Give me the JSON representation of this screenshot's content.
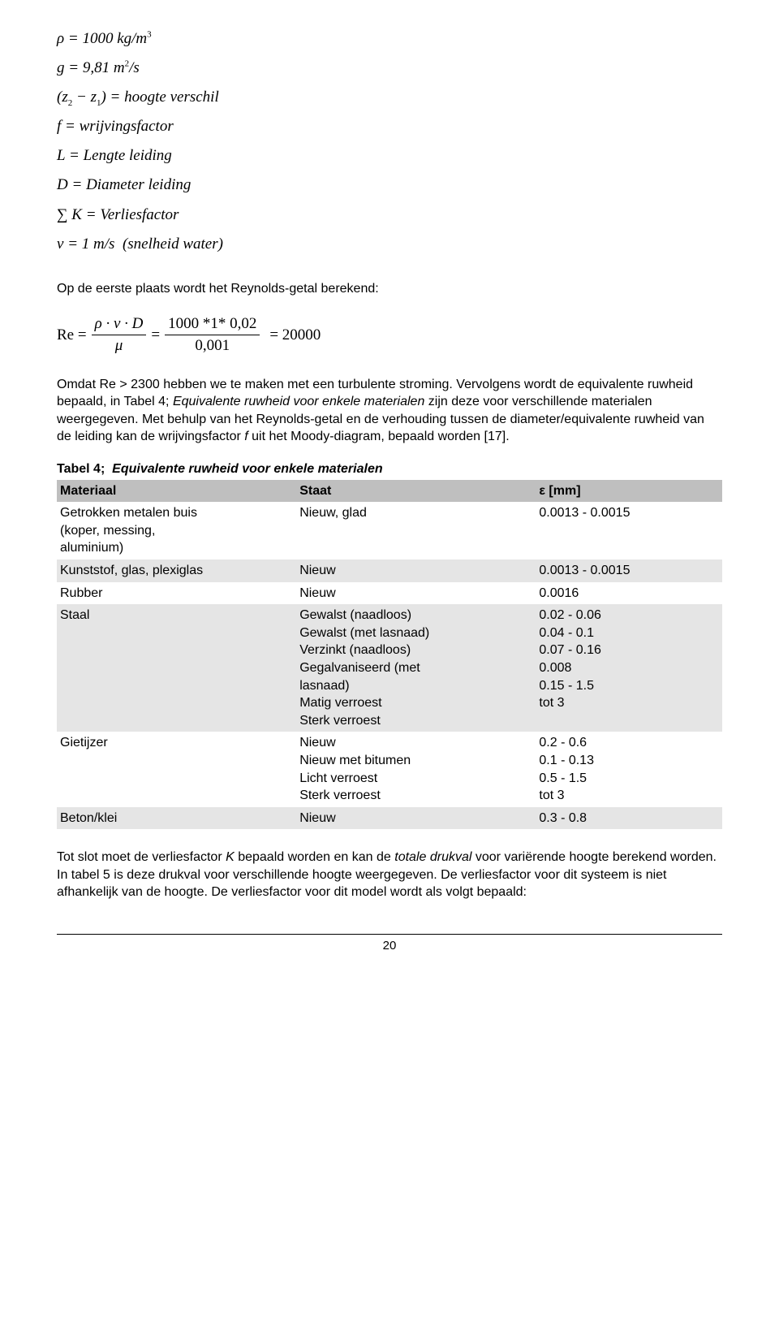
{
  "equations": {
    "line1_html": "ρ = 1000 <span class='it'>kg</span>/<span class='it'>m</span><sup>3</sup>",
    "line2_html": "<span class='it'>g</span> = 9,81 <span class='it'>m</span><sup>2</sup>/<span class='it'>s</span>",
    "line3_html": "(<span class='it'>z</span><sub>2</sub> − <span class='it'>z</span><sub>1</sub>) = <span class='it'>hoogte verschil</span>",
    "line4_html": "<span class='it'>f</span> = <span class='it'>wrijvingsfactor</span>",
    "line5_html": "<span class='it'>L</span> = <span class='it'>Lengte leiding</span>",
    "line6_html": "<span class='it'>D</span> = <span class='it'>Diameter leiding</span>",
    "line7_html": "∑ <span class='it'>K</span> = <span class='it'>Verliesfactor</span>",
    "line8_html": "<span class='it'>v</span> = 1 <span class='it'>m</span>/<span class='it'>s</span>&nbsp;&nbsp;(<span class='it'>snelheid water</span>)"
  },
  "para1": "Op de eerste plaats wordt het Reynolds-getal berekend:",
  "re_prefix": "Re =",
  "re_num1": "ρ · v · D",
  "re_den1": "μ",
  "re_eq2": "=",
  "re_num2": "1000 *1* 0,02",
  "re_den2": "0,001",
  "re_result": "= 20000",
  "para2_html": "Omdat Re &gt; 2300 hebben we te maken met een turbulente stroming. Vervolgens wordt de equivalente ruwheid bepaald, in Tabel 4; <span class='it'>Equivalente ruwheid voor enkele materialen</span> zijn deze voor verschillende materialen weergegeven. Met behulp van het Reynolds-getal en de verhouding tussen de diameter/equivalente ruwheid van de leiding kan de wrijvingsfactor <span class='it'>f</span> uit het Moody-diagram, bepaald worden [17].",
  "table": {
    "caption_html": "Tabel 4;&nbsp;&nbsp;<span class='it'>Equivalente ruwheid voor enkele materialen</span>",
    "headers": [
      "Materiaal",
      "Staat",
      "ε [mm]"
    ],
    "rows": [
      {
        "zebra": "w",
        "c1": "Getrokken metalen buis\n(koper, messing,\naluminium)",
        "c2": "Nieuw, glad",
        "c3": "0.0013 - 0.0015"
      },
      {
        "zebra": "z",
        "c1": "Kunststof, glas, plexiglas",
        "c2": "Nieuw",
        "c3": "0.0013 - 0.0015"
      },
      {
        "zebra": "w",
        "c1": "Rubber",
        "c2": "Nieuw",
        "c3": "0.0016"
      },
      {
        "zebra": "z",
        "c1": "Staal",
        "c2": "Gewalst (naadloos)\nGewalst (met lasnaad)\nVerzinkt (naadloos)\nGegalvaniseerd (met\nlasnaad)\nMatig verroest\nSterk verroest",
        "c3": "0.02 - 0.06\n0.04 - 0.1\n0.07 - 0.16\n0.008\n0.15 - 1.5\ntot 3"
      },
      {
        "zebra": "w",
        "c1": "Gietijzer",
        "c2": "Nieuw\nNieuw met bitumen\nLicht verroest\nSterk verroest",
        "c3": "0.2 - 0.6\n0.1 - 0.13\n0.5 - 1.5\ntot 3"
      },
      {
        "zebra": "z",
        "c1": "Beton/klei",
        "c2": "Nieuw",
        "c3": "0.3 - 0.8"
      }
    ]
  },
  "para3_html": "Tot slot moet de verliesfactor <span class='it'>K</span> bepaald worden en kan de <span class='it'>totale drukval</span> voor variërende hoogte berekend worden. In tabel 5 is deze drukval voor verschillende hoogte weergegeven. De verliesfactor voor dit systeem is niet afhankelijk van de hoogte. De verliesfactor voor dit model wordt als volgt bepaald:",
  "page_number": "20",
  "colors": {
    "header_bg": "#bfbfbf",
    "zebra_bg": "#e5e5e5",
    "text": "#000000",
    "bg": "#ffffff"
  }
}
